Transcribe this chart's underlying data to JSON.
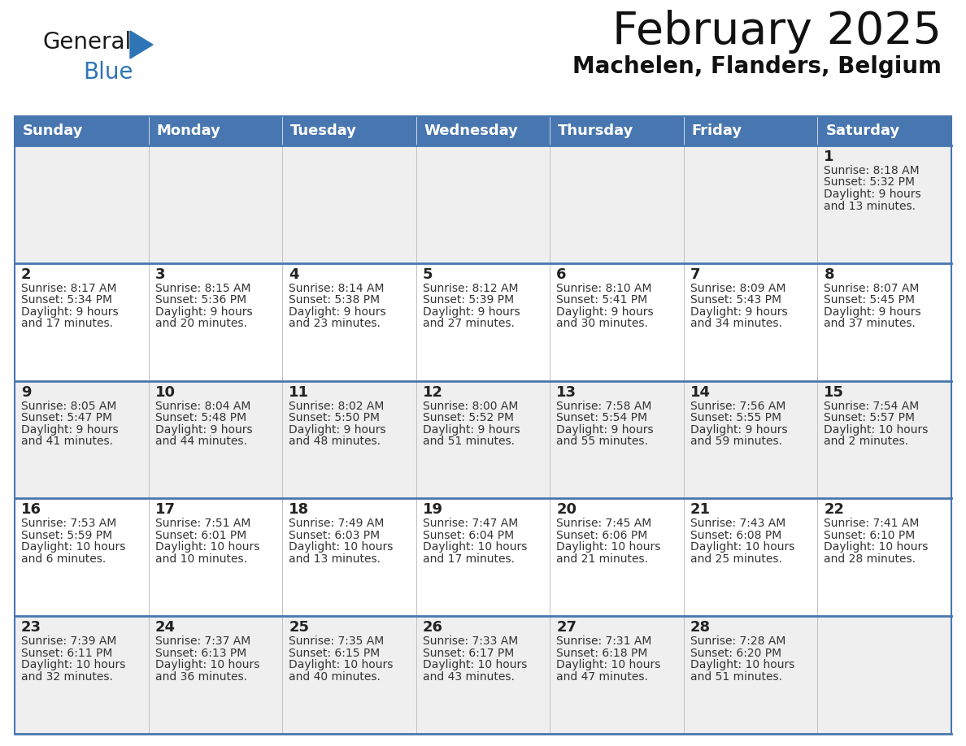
{
  "title": "February 2025",
  "subtitle": "Machelen, Flanders, Belgium",
  "header_bg": "#4876b0",
  "header_text_color": "#ffffff",
  "day_names": [
    "Sunday",
    "Monday",
    "Tuesday",
    "Wednesday",
    "Thursday",
    "Friday",
    "Saturday"
  ],
  "row_bgs": [
    "#efefef",
    "#ffffff",
    "#efefef",
    "#ffffff",
    "#efefef"
  ],
  "cell_border_color": "#4876b0",
  "day_num_color": "#222222",
  "info_text_color": "#333333",
  "title_color": "#111111",
  "subtitle_color": "#111111",
  "logo_general_color": "#1a1a1a",
  "logo_blue_color": "#2e75b6",
  "title_fontsize": 40,
  "subtitle_fontsize": 20,
  "header_fontsize": 13,
  "day_num_fontsize": 13,
  "info_fontsize": 10,
  "weeks": [
    [
      {
        "day": null,
        "info": ""
      },
      {
        "day": null,
        "info": ""
      },
      {
        "day": null,
        "info": ""
      },
      {
        "day": null,
        "info": ""
      },
      {
        "day": null,
        "info": ""
      },
      {
        "day": null,
        "info": ""
      },
      {
        "day": 1,
        "info": "Sunrise: 8:18 AM\nSunset: 5:32 PM\nDaylight: 9 hours\nand 13 minutes."
      }
    ],
    [
      {
        "day": 2,
        "info": "Sunrise: 8:17 AM\nSunset: 5:34 PM\nDaylight: 9 hours\nand 17 minutes."
      },
      {
        "day": 3,
        "info": "Sunrise: 8:15 AM\nSunset: 5:36 PM\nDaylight: 9 hours\nand 20 minutes."
      },
      {
        "day": 4,
        "info": "Sunrise: 8:14 AM\nSunset: 5:38 PM\nDaylight: 9 hours\nand 23 minutes."
      },
      {
        "day": 5,
        "info": "Sunrise: 8:12 AM\nSunset: 5:39 PM\nDaylight: 9 hours\nand 27 minutes."
      },
      {
        "day": 6,
        "info": "Sunrise: 8:10 AM\nSunset: 5:41 PM\nDaylight: 9 hours\nand 30 minutes."
      },
      {
        "day": 7,
        "info": "Sunrise: 8:09 AM\nSunset: 5:43 PM\nDaylight: 9 hours\nand 34 minutes."
      },
      {
        "day": 8,
        "info": "Sunrise: 8:07 AM\nSunset: 5:45 PM\nDaylight: 9 hours\nand 37 minutes."
      }
    ],
    [
      {
        "day": 9,
        "info": "Sunrise: 8:05 AM\nSunset: 5:47 PM\nDaylight: 9 hours\nand 41 minutes."
      },
      {
        "day": 10,
        "info": "Sunrise: 8:04 AM\nSunset: 5:48 PM\nDaylight: 9 hours\nand 44 minutes."
      },
      {
        "day": 11,
        "info": "Sunrise: 8:02 AM\nSunset: 5:50 PM\nDaylight: 9 hours\nand 48 minutes."
      },
      {
        "day": 12,
        "info": "Sunrise: 8:00 AM\nSunset: 5:52 PM\nDaylight: 9 hours\nand 51 minutes."
      },
      {
        "day": 13,
        "info": "Sunrise: 7:58 AM\nSunset: 5:54 PM\nDaylight: 9 hours\nand 55 minutes."
      },
      {
        "day": 14,
        "info": "Sunrise: 7:56 AM\nSunset: 5:55 PM\nDaylight: 9 hours\nand 59 minutes."
      },
      {
        "day": 15,
        "info": "Sunrise: 7:54 AM\nSunset: 5:57 PM\nDaylight: 10 hours\nand 2 minutes."
      }
    ],
    [
      {
        "day": 16,
        "info": "Sunrise: 7:53 AM\nSunset: 5:59 PM\nDaylight: 10 hours\nand 6 minutes."
      },
      {
        "day": 17,
        "info": "Sunrise: 7:51 AM\nSunset: 6:01 PM\nDaylight: 10 hours\nand 10 minutes."
      },
      {
        "day": 18,
        "info": "Sunrise: 7:49 AM\nSunset: 6:03 PM\nDaylight: 10 hours\nand 13 minutes."
      },
      {
        "day": 19,
        "info": "Sunrise: 7:47 AM\nSunset: 6:04 PM\nDaylight: 10 hours\nand 17 minutes."
      },
      {
        "day": 20,
        "info": "Sunrise: 7:45 AM\nSunset: 6:06 PM\nDaylight: 10 hours\nand 21 minutes."
      },
      {
        "day": 21,
        "info": "Sunrise: 7:43 AM\nSunset: 6:08 PM\nDaylight: 10 hours\nand 25 minutes."
      },
      {
        "day": 22,
        "info": "Sunrise: 7:41 AM\nSunset: 6:10 PM\nDaylight: 10 hours\nand 28 minutes."
      }
    ],
    [
      {
        "day": 23,
        "info": "Sunrise: 7:39 AM\nSunset: 6:11 PM\nDaylight: 10 hours\nand 32 minutes."
      },
      {
        "day": 24,
        "info": "Sunrise: 7:37 AM\nSunset: 6:13 PM\nDaylight: 10 hours\nand 36 minutes."
      },
      {
        "day": 25,
        "info": "Sunrise: 7:35 AM\nSunset: 6:15 PM\nDaylight: 10 hours\nand 40 minutes."
      },
      {
        "day": 26,
        "info": "Sunrise: 7:33 AM\nSunset: 6:17 PM\nDaylight: 10 hours\nand 43 minutes."
      },
      {
        "day": 27,
        "info": "Sunrise: 7:31 AM\nSunset: 6:18 PM\nDaylight: 10 hours\nand 47 minutes."
      },
      {
        "day": 28,
        "info": "Sunrise: 7:28 AM\nSunset: 6:20 PM\nDaylight: 10 hours\nand 51 minutes."
      },
      {
        "day": null,
        "info": ""
      }
    ]
  ]
}
